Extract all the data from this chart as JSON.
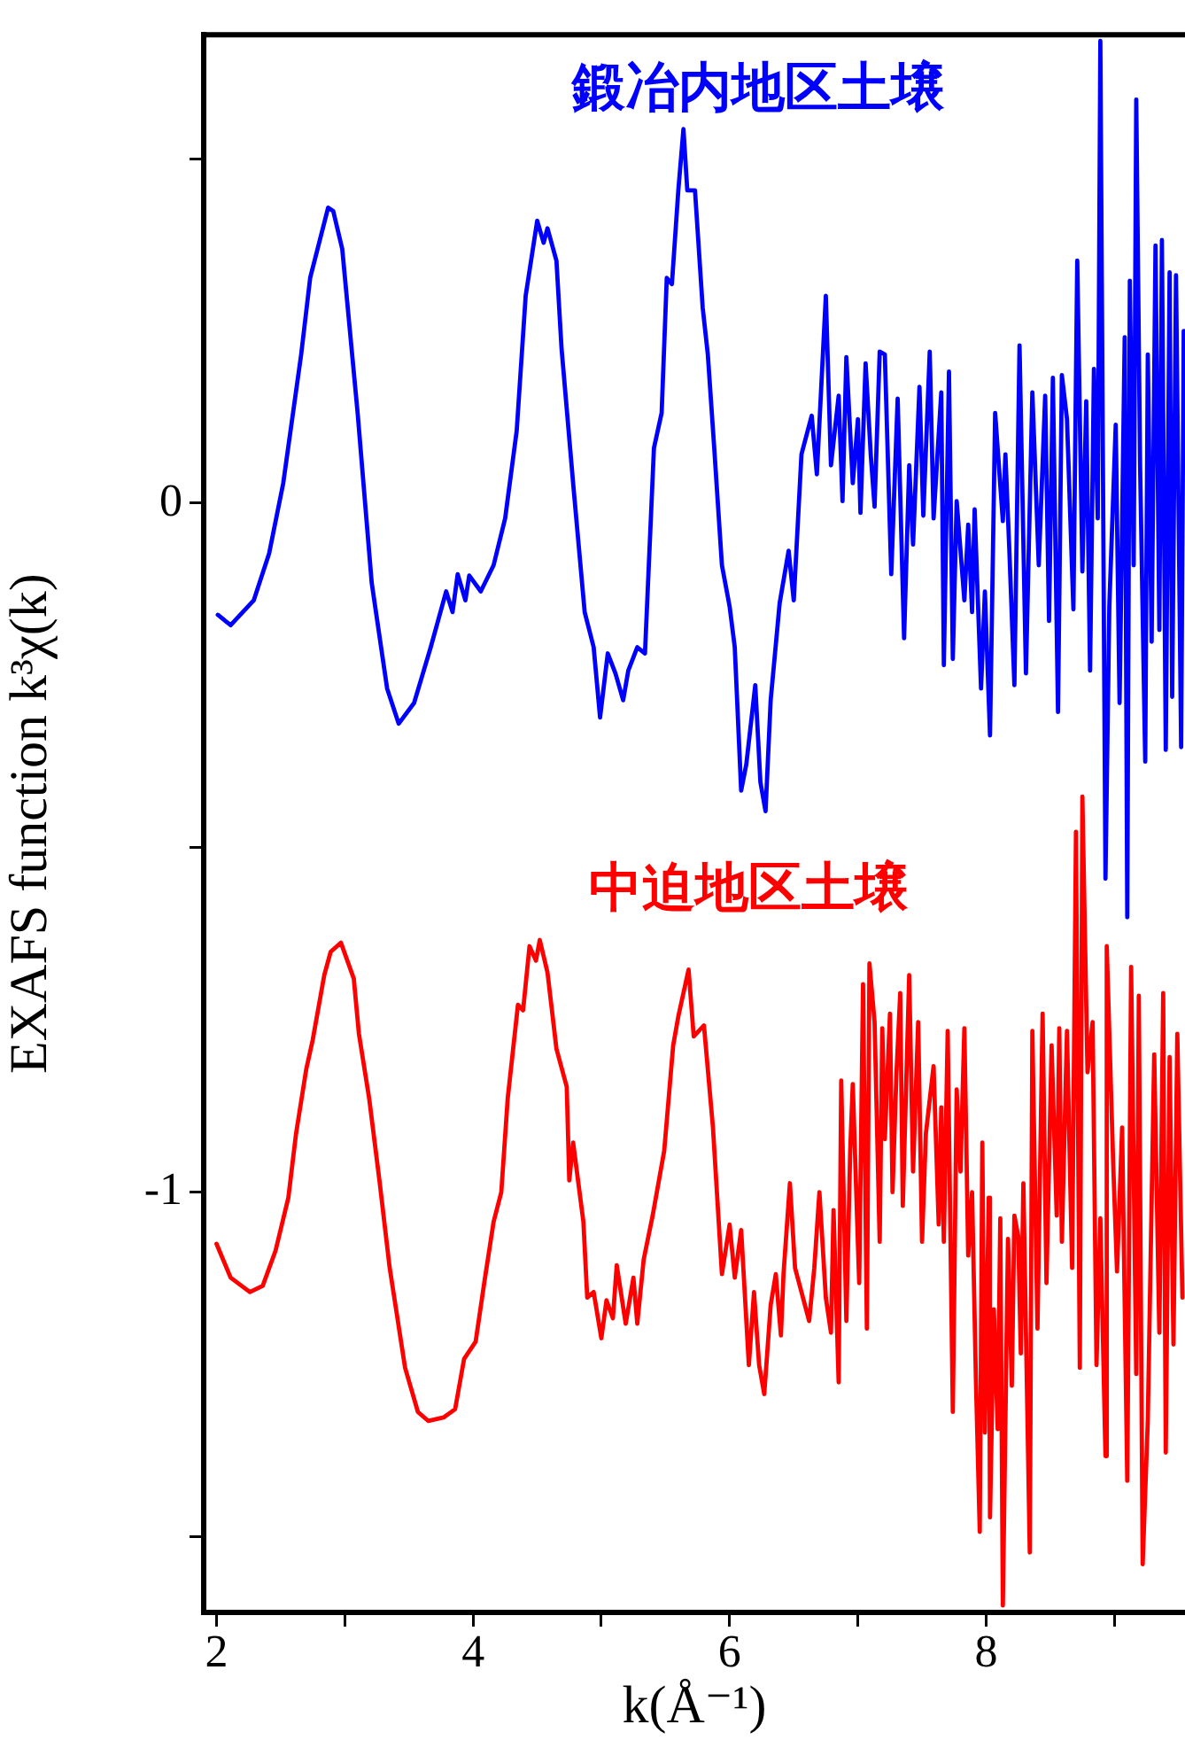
{
  "chart_data": {
    "type": "line",
    "xlabel": "k(Å⁻¹)",
    "ylabel": "EXAFS function k³χ(k)",
    "xlim": [
      1.9,
      9.55
    ],
    "ylim": [
      -1.61,
      0.68
    ],
    "xticks": [
      2,
      {
        "value": 3,
        "label": null
      },
      4,
      {
        "value": 5,
        "label": null
      },
      6,
      {
        "value": 7,
        "label": null
      },
      8,
      {
        "value": 9,
        "label": null
      }
    ],
    "yticks": [
      {
        "value": -1.5,
        "label": null
      },
      -1,
      {
        "value": -0.5,
        "label": null
      },
      0,
      {
        "value": 0.5,
        "label": null
      }
    ],
    "grid": false,
    "legend": false,
    "marker": "none",
    "line_style": "solid",
    "series": [
      {
        "name": "鍛冶内地区土壌",
        "color": "#0000ff",
        "x": [
          2.01,
          2.11,
          2.29,
          2.41,
          2.52,
          2.66,
          2.73,
          2.87,
          2.91,
          2.98,
          3.1,
          3.21,
          3.33,
          3.42,
          3.54,
          3.67,
          3.79,
          3.84,
          3.88,
          3.94,
          3.97,
          4.06,
          4.16,
          4.25,
          4.34,
          4.41,
          4.5,
          4.55,
          4.58,
          4.65,
          4.69,
          4.78,
          4.87,
          4.94,
          4.99,
          5.05,
          5.11,
          5.17,
          5.21,
          5.28,
          5.34,
          5.37,
          5.41,
          5.47,
          5.51,
          5.55,
          5.6,
          5.64,
          5.67,
          5.73,
          5.79,
          5.83,
          5.88,
          5.94,
          6.0,
          6.04,
          6.09,
          6.13,
          6.2,
          6.24,
          6.28,
          6.32,
          6.39,
          6.46,
          6.5,
          6.56,
          6.64,
          6.68,
          6.75,
          6.79,
          6.85,
          6.88,
          6.91,
          6.96,
          7.0,
          7.02,
          7.06,
          7.1,
          7.13,
          7.17,
          7.21,
          7.26,
          7.31,
          7.36,
          7.4,
          7.43,
          7.48,
          7.51,
          7.56,
          7.59,
          7.65,
          7.67,
          7.71,
          7.74,
          7.77,
          7.83,
          7.86,
          7.89,
          7.91,
          7.96,
          7.99,
          8.03,
          8.07,
          8.13,
          8.15,
          8.18,
          8.22,
          8.26,
          8.31,
          8.36,
          8.41,
          8.46,
          8.49,
          8.52,
          8.56,
          8.59,
          8.63,
          8.68,
          8.71,
          8.75,
          8.78,
          8.81,
          8.84,
          8.87,
          8.89,
          8.93,
          8.96,
          9.01,
          9.04,
          9.08,
          9.1,
          9.12,
          9.15,
          9.17,
          9.2,
          9.24,
          9.26,
          9.29,
          9.32,
          9.35,
          9.37,
          9.4,
          9.43,
          9.45,
          9.48,
          9.52,
          9.54
        ],
        "values": [
          -0.162,
          -0.177,
          -0.141,
          -0.073,
          0.029,
          0.216,
          0.327,
          0.429,
          0.424,
          0.369,
          0.131,
          -0.116,
          -0.269,
          -0.32,
          -0.29,
          -0.209,
          -0.128,
          -0.158,
          -0.103,
          -0.141,
          -0.105,
          -0.128,
          -0.09,
          -0.022,
          0.105,
          0.301,
          0.41,
          0.378,
          0.399,
          0.352,
          0.224,
          0.029,
          -0.158,
          -0.209,
          -0.311,
          -0.218,
          -0.247,
          -0.286,
          -0.243,
          -0.209,
          -0.218,
          -0.09,
          0.08,
          0.131,
          0.327,
          0.318,
          0.454,
          0.543,
          0.454,
          0.454,
          0.284,
          0.216,
          0.08,
          -0.09,
          -0.15,
          -0.209,
          -0.417,
          -0.379,
          -0.264,
          -0.405,
          -0.447,
          -0.286,
          -0.145,
          -0.069,
          -0.141,
          0.071,
          0.127,
          0.042,
          0.301,
          0.055,
          0.156,
          0.003,
          0.212,
          0.029,
          0.122,
          -0.014,
          0.203,
          0.071,
          -0.005,
          0.22,
          0.216,
          -0.103,
          0.152,
          -0.196,
          0.055,
          -0.06,
          0.169,
          -0.018,
          0.22,
          -0.022,
          0.161,
          -0.235,
          0.191,
          -0.226,
          0.003,
          -0.141,
          -0.031,
          -0.158,
          -0.009,
          -0.269,
          -0.128,
          -0.337,
          0.131,
          -0.026,
          0.071,
          -0.065,
          -0.264,
          0.229,
          -0.247,
          0.161,
          -0.09,
          0.156,
          -0.171,
          0.182,
          -0.303,
          0.186,
          0.122,
          -0.154,
          0.352,
          -0.099,
          0.148,
          -0.243,
          0.195,
          -0.022,
          0.671,
          -0.545,
          -0.15,
          0.114,
          -0.29,
          0.241,
          -0.601,
          0.323,
          -0.09,
          0.586,
          0.055,
          -0.375,
          0.216,
          -0.201,
          0.374,
          -0.184,
          0.382,
          -0.358,
          0.335,
          -0.281,
          0.331,
          -0.354,
          0.25
        ]
      },
      {
        "name": "中迫地区土壌",
        "color": "#ff0000",
        "x": [
          2.0,
          2.11,
          2.26,
          2.36,
          2.46,
          2.56,
          2.62,
          2.7,
          2.75,
          2.84,
          2.89,
          2.97,
          3.07,
          3.11,
          3.19,
          3.27,
          3.35,
          3.47,
          3.57,
          3.65,
          3.77,
          3.86,
          3.93,
          4.02,
          4.09,
          4.16,
          4.22,
          4.27,
          4.35,
          4.39,
          4.44,
          4.49,
          4.52,
          4.58,
          4.65,
          4.73,
          4.75,
          4.78,
          4.86,
          4.89,
          4.94,
          5.0,
          5.04,
          5.09,
          5.12,
          5.19,
          5.25,
          5.28,
          5.33,
          5.4,
          5.49,
          5.56,
          5.6,
          5.68,
          5.72,
          5.8,
          5.87,
          5.94,
          6.0,
          6.04,
          6.09,
          6.15,
          6.19,
          6.23,
          6.27,
          6.32,
          6.36,
          6.4,
          6.42,
          6.47,
          6.51,
          6.56,
          6.62,
          6.66,
          6.7,
          6.75,
          6.79,
          6.81,
          6.85,
          6.87,
          6.91,
          6.94,
          6.96,
          7.01,
          7.04,
          7.07,
          7.09,
          7.13,
          7.17,
          7.19,
          7.21,
          7.25,
          7.27,
          7.3,
          7.33,
          7.35,
          7.4,
          7.43,
          7.47,
          7.5,
          7.53,
          7.59,
          7.63,
          7.65,
          7.67,
          7.7,
          7.74,
          7.77,
          7.8,
          7.83,
          7.86,
          7.89,
          7.92,
          7.95,
          7.97,
          7.99,
          8.02,
          8.03,
          8.06,
          8.09,
          8.11,
          8.13,
          8.17,
          8.2,
          8.22,
          8.25,
          8.27,
          8.29,
          8.34,
          8.36,
          8.4,
          8.44,
          8.47,
          8.51,
          8.55,
          8.57,
          8.59,
          8.63,
          8.67,
          8.7,
          8.73,
          8.75,
          8.79,
          8.83,
          8.86,
          8.89,
          8.93,
          8.94,
          8.99,
          9.02,
          9.06,
          9.1,
          9.13,
          9.17,
          9.19,
          9.22,
          9.26,
          9.31,
          9.35,
          9.38,
          9.4,
          9.43,
          9.46,
          9.49,
          9.53
        ],
        "values": [
          -1.075,
          -1.124,
          -1.145,
          -1.136,
          -1.085,
          -1.008,
          -0.915,
          -0.821,
          -0.779,
          -0.685,
          -0.651,
          -0.638,
          -0.69,
          -0.77,
          -0.864,
          -0.983,
          -1.11,
          -1.255,
          -1.319,
          -1.332,
          -1.327,
          -1.315,
          -1.242,
          -1.217,
          -1.128,
          -1.043,
          -1.0,
          -0.864,
          -0.728,
          -0.736,
          -0.643,
          -0.664,
          -0.634,
          -0.681,
          -0.792,
          -0.847,
          -0.983,
          -0.928,
          -1.043,
          -1.153,
          -1.145,
          -1.212,
          -1.157,
          -1.183,
          -1.106,
          -1.191,
          -1.124,
          -1.191,
          -1.098,
          -1.034,
          -0.94,
          -0.787,
          -0.745,
          -0.677,
          -0.774,
          -0.758,
          -0.906,
          -1.119,
          -1.047,
          -1.124,
          -1.055,
          -1.251,
          -1.145,
          -1.251,
          -1.293,
          -1.164,
          -1.119,
          -1.208,
          -1.119,
          -0.987,
          -1.11,
          -1.145,
          -1.187,
          -1.11,
          -1.0,
          -1.153,
          -1.204,
          -1.026,
          -1.276,
          -0.838,
          -1.187,
          -0.94,
          -0.843,
          -1.132,
          -0.698,
          -1.198,
          -0.668,
          -0.753,
          -1.072,
          -0.762,
          -0.923,
          -0.741,
          -1.0,
          -0.83,
          -0.711,
          -1.02,
          -0.685,
          -0.97,
          -0.753,
          -1.072,
          -0.915,
          -0.817,
          -1.047,
          -0.877,
          -1.072,
          -0.766,
          -1.319,
          -0.851,
          -0.97,
          -0.762,
          -1.092,
          -1.0,
          -1.272,
          -1.493,
          -0.928,
          -1.349,
          -1.008,
          -1.472,
          -1.17,
          -1.344,
          -1.038,
          -1.6,
          -1.068,
          -1.281,
          -1.034,
          -1.064,
          -1.234,
          -0.987,
          -1.523,
          -0.766,
          -1.198,
          -0.741,
          -1.132,
          -0.787,
          -1.034,
          -0.762,
          -1.072,
          -0.766,
          -1.11,
          -0.477,
          -1.255,
          -0.426,
          -0.826,
          -0.753,
          -1.251,
          -1.038,
          -1.383,
          -0.643,
          -0.957,
          -1.115,
          -0.906,
          -1.419,
          -0.673,
          -1.264,
          -0.715,
          -1.54,
          -1.332,
          -0.8,
          -1.204,
          -0.711,
          -1.378,
          -0.804,
          -1.221,
          -0.77,
          -1.153
        ]
      }
    ]
  }
}
